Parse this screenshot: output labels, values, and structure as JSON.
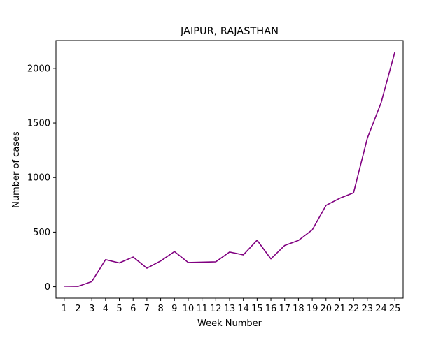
{
  "chart_data": {
    "type": "line",
    "title": "JAIPUR, RAJASTHAN",
    "xlabel": "Week Number",
    "ylabel": "Number of cases",
    "categories": [
      "1",
      "2",
      "3",
      "4",
      "5",
      "6",
      "7",
      "8",
      "9",
      "10",
      "11",
      "12",
      "13",
      "14",
      "15",
      "16",
      "17",
      "18",
      "19",
      "20",
      "21",
      "22",
      "23",
      "24",
      "25"
    ],
    "series": [
      {
        "color": "#800080",
        "values": [
          5,
          3,
          47,
          248,
          218,
          272,
          170,
          236,
          322,
          222,
          225,
          228,
          318,
          292,
          426,
          255,
          378,
          424,
          520,
          745,
          810,
          860,
          1360,
          1685,
          2150
        ]
      }
    ],
    "ylim": [
      -105,
      2255
    ],
    "yticks": [
      0,
      500,
      1000,
      1500,
      2000
    ],
    "grid": false,
    "legend": "none"
  }
}
